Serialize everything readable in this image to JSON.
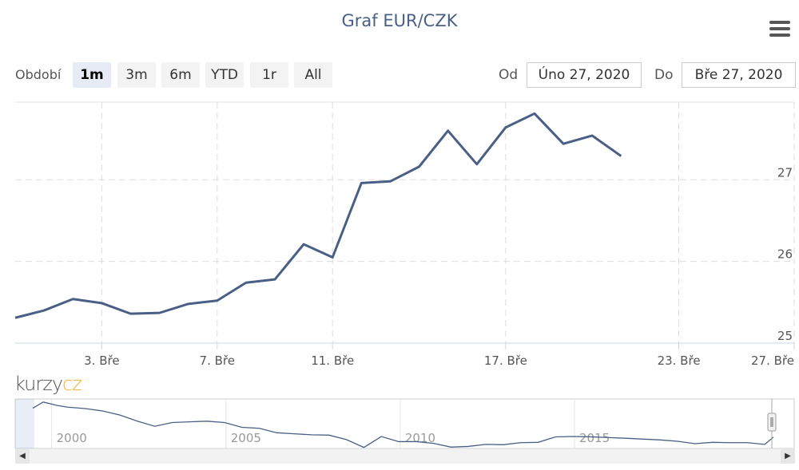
{
  "header": {
    "title": "Graf EUR/CZK",
    "menu_icon": "hamburger-menu-icon"
  },
  "range_selector": {
    "label": "Období",
    "buttons": [
      "1m",
      "3m",
      "6m",
      "YTD",
      "1r",
      "All"
    ],
    "selected": "1m"
  },
  "date_inputs": {
    "from_label": "Od",
    "from_value": "Úno 27, 2020",
    "to_label": "Do",
    "to_value": "Bře 27, 2020"
  },
  "logo": {
    "part1": "kurzy",
    "part2": "cz"
  },
  "colors": {
    "line": "#4a5f86",
    "grid": "#e6e6e6",
    "title": "#4a5f86",
    "logo_accent": "#f0b030"
  },
  "chart_data": {
    "type": "line",
    "title": "Graf EUR/CZK",
    "xlabel": "",
    "ylabel": "",
    "x_ticks": [
      {
        "day": 3,
        "label": "3. Bře"
      },
      {
        "day": 7,
        "label": "7. Bře"
      },
      {
        "day": 11,
        "label": "11. Bře"
      },
      {
        "day": 17,
        "label": "17. Bře"
      },
      {
        "day": 23,
        "label": "23. Bře"
      },
      {
        "day": 27,
        "label": "27. Bře"
      }
    ],
    "y_ticks": [
      25,
      26,
      27
    ],
    "ylim": [
      25,
      27.95
    ],
    "xlim": [
      0,
      27
    ],
    "grid": true,
    "series": [
      {
        "values": [
          {
            "day": 0,
            "y": 25.31
          },
          {
            "day": 1,
            "y": 25.4
          },
          {
            "day": 2,
            "y": 25.54
          },
          {
            "day": 3,
            "y": 25.49
          },
          {
            "day": 4,
            "y": 25.36
          },
          {
            "day": 5,
            "y": 25.37
          },
          {
            "day": 6,
            "y": 25.48
          },
          {
            "day": 7,
            "y": 25.52
          },
          {
            "day": 8,
            "y": 25.74
          },
          {
            "day": 9,
            "y": 25.78
          },
          {
            "day": 10,
            "y": 26.21
          },
          {
            "day": 11,
            "y": 26.05
          },
          {
            "day": 12,
            "y": 26.96
          },
          {
            "day": 13,
            "y": 26.98
          },
          {
            "day": 14,
            "y": 27.16
          },
          {
            "day": 15,
            "y": 27.6
          },
          {
            "day": 16,
            "y": 27.19
          },
          {
            "day": 17,
            "y": 27.64
          },
          {
            "day": 18,
            "y": 27.81
          },
          {
            "day": 19,
            "y": 27.44
          },
          {
            "day": 20,
            "y": 27.54
          },
          {
            "day": 21,
            "y": 27.29
          }
        ]
      }
    ],
    "navigator": {
      "x_labels": [
        "2000",
        "2005",
        "2010",
        "2015"
      ],
      "x_label_years": [
        2000,
        2005,
        2010,
        2015
      ],
      "xlim": [
        1999,
        2020.25
      ],
      "ylim": [
        24,
        38.5
      ],
      "series": [
        {
          "year": 1999.0,
          "y": 35.8
        },
        {
          "year": 1999.3,
          "y": 37.6
        },
        {
          "year": 1999.7,
          "y": 36.6
        },
        {
          "year": 2000.0,
          "y": 36.1
        },
        {
          "year": 2000.5,
          "y": 35.7
        },
        {
          "year": 2001.0,
          "y": 35.0
        },
        {
          "year": 2001.5,
          "y": 33.8
        },
        {
          "year": 2002.0,
          "y": 32.0
        },
        {
          "year": 2002.5,
          "y": 30.5
        },
        {
          "year": 2003.0,
          "y": 31.6
        },
        {
          "year": 2003.5,
          "y": 31.8
        },
        {
          "year": 2004.0,
          "y": 32.0
        },
        {
          "year": 2004.5,
          "y": 31.6
        },
        {
          "year": 2005.0,
          "y": 30.2
        },
        {
          "year": 2005.5,
          "y": 29.9
        },
        {
          "year": 2006.0,
          "y": 28.6
        },
        {
          "year": 2006.5,
          "y": 28.3
        },
        {
          "year": 2007.0,
          "y": 28.0
        },
        {
          "year": 2007.5,
          "y": 27.9
        },
        {
          "year": 2008.0,
          "y": 26.6
        },
        {
          "year": 2008.5,
          "y": 24.3
        },
        {
          "year": 2009.0,
          "y": 27.5
        },
        {
          "year": 2009.5,
          "y": 26.0
        },
        {
          "year": 2010.0,
          "y": 26.0
        },
        {
          "year": 2010.5,
          "y": 25.5
        },
        {
          "year": 2011.0,
          "y": 24.4
        },
        {
          "year": 2011.5,
          "y": 24.6
        },
        {
          "year": 2012.0,
          "y": 25.2
        },
        {
          "year": 2012.5,
          "y": 25.1
        },
        {
          "year": 2013.0,
          "y": 25.7
        },
        {
          "year": 2013.5,
          "y": 25.8
        },
        {
          "year": 2014.0,
          "y": 27.4
        },
        {
          "year": 2014.5,
          "y": 27.5
        },
        {
          "year": 2015.0,
          "y": 27.4
        },
        {
          "year": 2016.0,
          "y": 27.0
        },
        {
          "year": 2017.0,
          "y": 26.5
        },
        {
          "year": 2017.5,
          "y": 26.1
        },
        {
          "year": 2018.0,
          "y": 25.4
        },
        {
          "year": 2018.5,
          "y": 25.8
        },
        {
          "year": 2019.0,
          "y": 25.7
        },
        {
          "year": 2019.5,
          "y": 25.7
        },
        {
          "year": 2020.0,
          "y": 25.2
        },
        {
          "year": 2020.25,
          "y": 27.3
        }
      ]
    }
  }
}
